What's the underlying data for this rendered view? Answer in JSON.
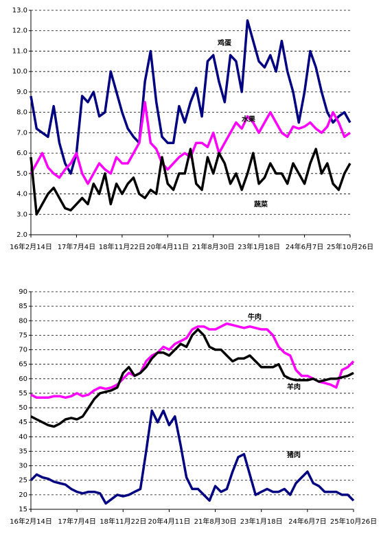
{
  "chart_data": [
    {
      "type": "line",
      "categories": [
        "16年2月14日",
        null,
        null,
        null,
        null,
        null,
        null,
        null,
        "17年7月4日",
        null,
        null,
        null,
        null,
        null,
        null,
        null,
        "18年11月22日",
        null,
        null,
        null,
        null,
        null,
        null,
        null,
        "20年4月11日",
        null,
        null,
        null,
        null,
        null,
        null,
        null,
        "21年8月30日",
        null,
        null,
        null,
        null,
        null,
        null,
        null,
        "23年1月18日",
        null,
        null,
        null,
        null,
        null,
        null,
        null,
        "24年6月7日",
        null,
        null,
        null,
        null,
        null,
        null,
        null,
        "25年10月26日"
      ],
      "ylim": [
        2,
        13
      ],
      "yticks": [
        {
          "value": 2,
          "label": "2.0"
        },
        {
          "value": 3,
          "label": "3.0"
        },
        {
          "value": 4,
          "label": "4.0"
        },
        {
          "value": 5,
          "label": "5.0"
        },
        {
          "value": 6,
          "label": "6.0"
        },
        {
          "value": 7,
          "label": "7.0"
        },
        {
          "value": 8,
          "label": "8.0"
        },
        {
          "value": 9,
          "label": "9.0"
        },
        {
          "value": 10,
          "label": "10.0"
        },
        {
          "value": 11,
          "label": "11.0"
        },
        {
          "value": 12,
          "label": "12.0"
        },
        {
          "value": 13,
          "label": "13.0"
        }
      ],
      "grid": true,
      "series": [
        {
          "name": "鸡蛋",
          "color": "#000080",
          "values": [
            8.8,
            7.2,
            7.0,
            6.8,
            8.3,
            6.5,
            5.5,
            5.0,
            6.0,
            8.8,
            8.5,
            9.0,
            7.8,
            8.0,
            10.0,
            9.0,
            8.0,
            7.2,
            6.8,
            6.5,
            9.5,
            11.0,
            8.5,
            6.8,
            6.5,
            6.5,
            8.3,
            7.5,
            8.5,
            9.2,
            7.8,
            10.5,
            10.8,
            9.5,
            8.5,
            10.8,
            10.5,
            9.0,
            12.5,
            11.5,
            10.5,
            10.2,
            10.8,
            10.0,
            11.5,
            10.0,
            9.0,
            7.5,
            9.0,
            11.0,
            10.2,
            9.0,
            8.0,
            7.5,
            7.8,
            8.0,
            7.5
          ]
        },
        {
          "name": "水果",
          "color": "#ff00ff",
          "values": [
            5.0,
            5.5,
            6.0,
            5.3,
            5.0,
            4.8,
            5.2,
            5.5,
            6.0,
            5.0,
            4.5,
            5.0,
            5.5,
            5.2,
            5.0,
            5.8,
            5.5,
            5.5,
            6.0,
            6.5,
            8.5,
            6.5,
            6.2,
            5.5,
            5.2,
            5.5,
            5.8,
            6.0,
            5.8,
            6.5,
            6.5,
            6.3,
            7.0,
            6.0,
            6.5,
            7.0,
            7.5,
            7.2,
            7.8,
            7.5,
            7.0,
            7.5,
            8.0,
            7.5,
            7.0,
            6.8,
            7.3,
            7.2,
            7.3,
            7.5,
            7.2,
            7.0,
            7.3,
            8.0,
            7.5,
            6.8,
            7.0
          ]
        },
        {
          "name": "蔬菜",
          "color": "#000000",
          "values": [
            5.8,
            3.0,
            3.5,
            4.0,
            4.3,
            3.8,
            3.3,
            3.2,
            3.5,
            3.8,
            3.5,
            4.5,
            4.0,
            5.0,
            3.5,
            4.5,
            4.0,
            4.5,
            4.8,
            4.0,
            3.8,
            4.2,
            4.0,
            5.8,
            4.5,
            4.2,
            5.0,
            5.0,
            6.2,
            4.5,
            4.2,
            5.8,
            5.0,
            6.0,
            5.5,
            4.5,
            5.0,
            4.2,
            5.0,
            6.0,
            4.5,
            4.8,
            5.5,
            5.0,
            5.0,
            4.5,
            5.5,
            5.0,
            4.5,
            5.5,
            6.2,
            5.0,
            5.5,
            4.5,
            4.2,
            5.0,
            5.5
          ]
        }
      ]
    },
    {
      "type": "line",
      "categories": [
        "16年2月14日",
        null,
        null,
        null,
        null,
        null,
        null,
        null,
        "17年7月4日",
        null,
        null,
        null,
        null,
        null,
        null,
        null,
        "18年11月22日",
        null,
        null,
        null,
        null,
        null,
        null,
        null,
        "20年4月11日",
        null,
        null,
        null,
        null,
        null,
        null,
        null,
        "21年8月30日",
        null,
        null,
        null,
        null,
        null,
        null,
        null,
        "23年1月18日",
        null,
        null,
        null,
        null,
        null,
        null,
        null,
        "24年6月7日",
        null,
        null,
        null,
        null,
        null,
        null,
        null,
        "25年10月26日"
      ],
      "ylim": [
        15,
        90
      ],
      "yticks": [
        15,
        20,
        25,
        30,
        35,
        40,
        45,
        50,
        55,
        60,
        65,
        70,
        75,
        80,
        85,
        90
      ],
      "grid": true,
      "series": [
        {
          "name": "牛肉",
          "color": "#ff00ff",
          "values": [
            54.5,
            53.5,
            53.5,
            53.5,
            54,
            54,
            53.5,
            54,
            55,
            54,
            54.5,
            56,
            57,
            56.5,
            57,
            58,
            60,
            62,
            61,
            62,
            66,
            68,
            69,
            71,
            70,
            72,
            73,
            74,
            77,
            78,
            78,
            77,
            77,
            78,
            79,
            78.5,
            78,
            77.5,
            78,
            77.5,
            77,
            77,
            75,
            71,
            69,
            68,
            63,
            61,
            61,
            60,
            59,
            58.5,
            58,
            57,
            63,
            64,
            66
          ]
        },
        {
          "name": "羊肉",
          "color": "#000000",
          "values": [
            47,
            46,
            45,
            44,
            43.5,
            44.5,
            46,
            46.5,
            46,
            47,
            50,
            53,
            55,
            55.5,
            56,
            57,
            62,
            64,
            61,
            62,
            64,
            67,
            69,
            69,
            68,
            70,
            72,
            71,
            75,
            77,
            75,
            71,
            70,
            70,
            68,
            66,
            67,
            67,
            68,
            66,
            64,
            64,
            64,
            65,
            61,
            60,
            59.5,
            59.5,
            59.5,
            60,
            59,
            59.5,
            60,
            60,
            60.5,
            61,
            62
          ]
        },
        {
          "name": "猪肉",
          "color": "#000080",
          "values": [
            25,
            27,
            26,
            25.5,
            24.5,
            24,
            23.5,
            22,
            21,
            20.5,
            21,
            21,
            20.5,
            17,
            18.5,
            20,
            19.5,
            20,
            21,
            22,
            35,
            49,
            45,
            49,
            44,
            47,
            37,
            26,
            22,
            22,
            20,
            18,
            23,
            21,
            22,
            28,
            33,
            34,
            27,
            20,
            21,
            22,
            21,
            21,
            22,
            20,
            24,
            26,
            28,
            24,
            23,
            21,
            21,
            21,
            20,
            20,
            18
          ]
        }
      ]
    }
  ]
}
